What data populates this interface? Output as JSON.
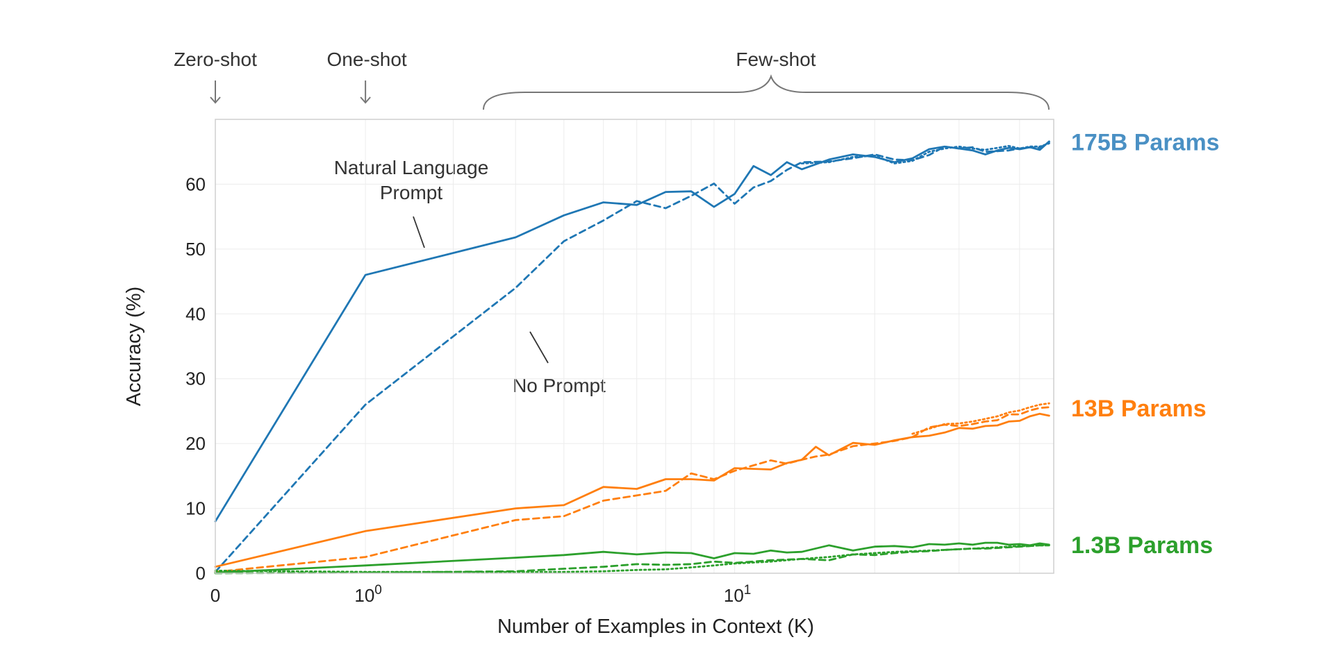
{
  "chart_data": {
    "type": "line",
    "title": "",
    "xlabel": "Number of Examples in Context  (K)",
    "ylabel": "Accuracy (%)",
    "xscale": "symlog",
    "xlim": [
      0,
      47
    ],
    "ylim": [
      0,
      70
    ],
    "grid": true,
    "y_ticks": [
      0,
      10,
      20,
      30,
      40,
      50,
      60
    ],
    "x_ticks": [
      {
        "value": 0,
        "base": "0",
        "exp": ""
      },
      {
        "value": 1,
        "base": "10",
        "exp": "0"
      },
      {
        "value": 10,
        "base": "10",
        "exp": "1"
      }
    ],
    "regime_labels": {
      "zero_shot": "Zero-shot",
      "one_shot": "One-shot",
      "few_shot": "Few-shot"
    },
    "annotations": {
      "prompt_line1": "Natural Language",
      "prompt_line2": "Prompt",
      "no_prompt": "No Prompt"
    },
    "model_labels": [
      {
        "text": "175B Params",
        "color": "#4a90c4",
        "y": 66.5
      },
      {
        "text": "13B Params",
        "color": "#ff7f0e",
        "y": 25.5
      },
      {
        "text": "1.3B Params",
        "color": "#2ca02c",
        "y": 4.4
      }
    ],
    "series": [
      {
        "name": "175B Natural Language Prompt",
        "color": "#1f77b4",
        "style": "solid",
        "x": [
          0,
          1,
          3,
          4,
          5,
          6,
          7,
          8,
          9,
          10,
          11,
          12,
          13,
          14,
          16,
          18,
          20,
          22,
          24,
          26,
          28,
          30,
          32,
          34,
          36,
          38,
          40,
          42,
          44,
          46
        ],
        "y": [
          8,
          46,
          51.8,
          55.2,
          57.2,
          56.8,
          58.8,
          58.9,
          56.5,
          58.5,
          62.8,
          61.4,
          63.4,
          62.3,
          63.8,
          64.6,
          64.2,
          63.4,
          64,
          65.4,
          65.8,
          65.5,
          65.2,
          64.6,
          65.2,
          65.6,
          65.4,
          65.7,
          65.3,
          66.6
        ]
      },
      {
        "name": "175B No Prompt",
        "color": "#1f77b4",
        "style": "dashed",
        "x": [
          0,
          1,
          3,
          4,
          5,
          6,
          7,
          8,
          9,
          10,
          11,
          12,
          13,
          14,
          16,
          18,
          20,
          22,
          24,
          26,
          28,
          30,
          32,
          34,
          36,
          38,
          40,
          42,
          44,
          46
        ],
        "y": [
          0.2,
          26,
          44,
          51.2,
          54.4,
          57.4,
          56.3,
          58.2,
          60.1,
          57,
          59.5,
          60.5,
          62.2,
          63.4,
          63.5,
          64,
          64.6,
          63.8,
          63.7,
          64.5,
          65.8,
          65.5,
          65.7,
          65,
          65.1,
          65.2,
          65.5,
          65.7,
          65.6,
          66.5
        ]
      },
      {
        "name": "175B",
        "color": "#1f77b4",
        "style": "dotted",
        "x": [
          14,
          16,
          18,
          20,
          22,
          24,
          26,
          28,
          30,
          32,
          34,
          36,
          38,
          40,
          42,
          44,
          46
        ],
        "y": [
          63.2,
          63.4,
          64.2,
          64.4,
          63.2,
          63.6,
          65,
          65.5,
          65.8,
          65.5,
          65.3,
          65.6,
          65.9,
          65.5,
          65.8,
          65.8,
          66.3
        ]
      },
      {
        "name": "13B Natural Language Prompt",
        "color": "#ff7f0e",
        "style": "solid",
        "x": [
          0,
          1,
          3,
          4,
          5,
          6,
          7,
          8,
          9,
          10,
          12,
          13,
          14,
          15,
          16,
          18,
          20,
          22,
          24,
          26,
          28,
          30,
          32,
          34,
          36,
          38,
          40,
          42,
          44,
          46
        ],
        "y": [
          1,
          6.5,
          10,
          10.5,
          13.3,
          13,
          14.5,
          14.5,
          14.3,
          16.2,
          16,
          17,
          17.5,
          19.5,
          18.2,
          20.1,
          19.8,
          20.5,
          21,
          21.2,
          21.7,
          22.4,
          22.3,
          22.7,
          22.8,
          23.4,
          23.5,
          24.2,
          24.6,
          24.3
        ]
      },
      {
        "name": "13B No Prompt",
        "color": "#ff7f0e",
        "style": "dashed",
        "x": [
          0,
          1,
          3,
          4,
          5,
          6,
          7,
          8,
          9,
          10,
          12,
          13,
          14,
          15,
          16,
          18,
          20,
          22,
          24,
          26,
          28,
          30,
          32,
          34,
          36,
          38,
          40,
          42,
          44,
          46
        ],
        "y": [
          0.2,
          2.5,
          8.2,
          8.8,
          11.2,
          12,
          12.7,
          15.4,
          14.5,
          15.8,
          17.4,
          16.9,
          17.5,
          18,
          18.3,
          19.6,
          20,
          20.4,
          21,
          22.5,
          22.9,
          22.7,
          23,
          23.4,
          23.6,
          24.5,
          24.5,
          25.1,
          25.5,
          25.6
        ]
      },
      {
        "name": "13B",
        "color": "#ff7f0e",
        "style": "dotted",
        "x": [
          24,
          26,
          28,
          30,
          32,
          34,
          36,
          38,
          40,
          42,
          44,
          46
        ],
        "y": [
          21.5,
          22.3,
          23,
          23.1,
          23.4,
          23.8,
          24.2,
          24.8,
          25.1,
          25.6,
          26,
          26.2
        ]
      },
      {
        "name": "1.3B Natural Language Prompt",
        "color": "#2ca02c",
        "style": "solid",
        "x": [
          0,
          1,
          3,
          4,
          5,
          6,
          7,
          8,
          9,
          10,
          11,
          12,
          13,
          14,
          16,
          18,
          20,
          22,
          24,
          26,
          28,
          30,
          32,
          34,
          36,
          38,
          40,
          42,
          44,
          46
        ],
        "y": [
          0.1,
          1.2,
          2.4,
          2.8,
          3.3,
          2.9,
          3.2,
          3.1,
          2.3,
          3.1,
          3,
          3.5,
          3.2,
          3.3,
          4.3,
          3.5,
          4.1,
          4.2,
          4,
          4.5,
          4.4,
          4.6,
          4.4,
          4.7,
          4.7,
          4.4,
          4.5,
          4.3,
          4.6,
          4.4
        ]
      },
      {
        "name": "1.3B No Prompt",
        "color": "#2ca02c",
        "style": "dashed",
        "x": [
          0,
          1,
          3,
          4,
          5,
          6,
          7,
          8,
          9,
          10,
          12,
          14,
          16,
          18,
          20,
          22,
          24,
          26,
          28,
          30,
          32,
          34,
          36,
          38,
          40,
          42,
          44,
          46
        ],
        "y": [
          0,
          0.1,
          0.3,
          0.7,
          1,
          1.4,
          1.3,
          1.4,
          1.8,
          1.6,
          2,
          2.2,
          2,
          2.9,
          2.8,
          3.1,
          3.3,
          3.4,
          3.6,
          3.7,
          3.8,
          3.8,
          3.9,
          4,
          4.1,
          4.2,
          4.3,
          4.3
        ]
      },
      {
        "name": "1.3B",
        "color": "#2ca02c",
        "style": "dotted",
        "x": [
          0,
          1,
          3,
          4,
          5,
          6,
          7,
          8,
          9,
          10,
          12,
          14,
          16,
          18,
          20,
          22,
          24,
          26,
          28,
          30,
          32,
          34,
          36,
          38,
          40,
          42,
          44,
          46
        ],
        "y": [
          0.4,
          0.2,
          0.2,
          0.2,
          0.3,
          0.5,
          0.6,
          0.9,
          1.2,
          1.5,
          1.8,
          2.2,
          2.5,
          2.9,
          3.1,
          3.3,
          3.4,
          3.5,
          3.6,
          3.7,
          3.8,
          3.9,
          4,
          4.1,
          4.2,
          4.2,
          4.3,
          4.3
        ]
      }
    ]
  }
}
